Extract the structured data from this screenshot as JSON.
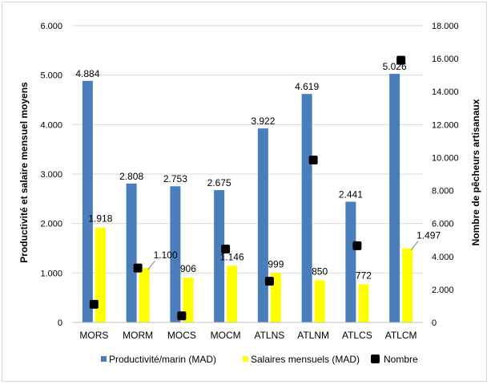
{
  "chart_data": {
    "type": "bar",
    "categories": [
      "MORS",
      "MORM",
      "MOCS",
      "MOCM",
      "ATLNS",
      "ATLNM",
      "ATLCS",
      "ATLCM"
    ],
    "series": [
      {
        "name": "Productivité/marin (MAD)",
        "axis": "left",
        "kind": "bar",
        "color": "#4a7ebb",
        "values": [
          4884,
          2808,
          2753,
          2675,
          3922,
          4619,
          2441,
          5026
        ],
        "labels": [
          "4.884",
          "2.808",
          "2.753",
          "2.675",
          "3.922",
          "4.619",
          "2.441",
          "5.026"
        ]
      },
      {
        "name": "Salaires mensuels (MAD)",
        "axis": "left",
        "kind": "bar",
        "color": "#ffff00",
        "values": [
          1918,
          1100,
          906,
          1146,
          999,
          850,
          772,
          1497
        ],
        "labels": [
          "1.918",
          "1.100",
          "906",
          "1.146",
          "999",
          "850",
          "772",
          "1.497"
        ]
      },
      {
        "name": "Nombre",
        "axis": "right",
        "kind": "marker",
        "color": "#000000",
        "values": [
          1100,
          3300,
          400,
          4450,
          2500,
          9850,
          4650,
          15900
        ]
      }
    ],
    "ylabel": "Productivité et salaire mensuel moyens",
    "y2label": "Nombre de pêcheurs artisanaux",
    "ylim": [
      0,
      6000
    ],
    "y2lim": [
      0,
      18000
    ],
    "yticks": [
      "0",
      "1.000",
      "2.000",
      "3.000",
      "4.000",
      "5.000",
      "6.000"
    ],
    "y2ticks": [
      "0",
      "2.000",
      "4.000",
      "6.000",
      "8.000",
      "10.000",
      "12.000",
      "14.000",
      "16.000",
      "18.000"
    ],
    "grid": true,
    "legend": "bottom"
  }
}
